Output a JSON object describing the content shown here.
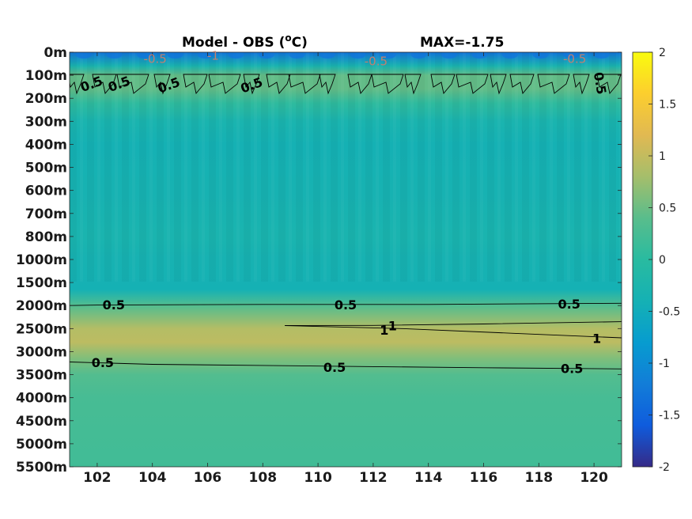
{
  "chart_data": {
    "type": "heatmap",
    "title_left": "Model - OBS (",
    "title_unit_sup": "o",
    "title_unit_end": "C)",
    "title_right": "MAX=-1.75",
    "x_ticks": [
      "102",
      "104",
      "106",
      "108",
      "110",
      "112",
      "114",
      "116",
      "118",
      "120"
    ],
    "x_tick_values": [
      102,
      104,
      106,
      108,
      110,
      112,
      114,
      116,
      118,
      120
    ],
    "xlim": [
      101,
      121
    ],
    "y_ticks": [
      "0m",
      "100m",
      "200m",
      "300m",
      "400m",
      "500m",
      "600m",
      "700m",
      "800m",
      "1000m",
      "1500m",
      "2000m",
      "2500m",
      "3000m",
      "3500m",
      "4000m",
      "4500m",
      "5000m",
      "5500m"
    ],
    "colorbar": {
      "min": -2,
      "max": 2,
      "ticks": [
        "2",
        "1.5",
        "1",
        "0.5",
        "0",
        "-0.5",
        "-1",
        "-1.5",
        "-2"
      ],
      "colormap": "parula"
    },
    "field_profile_by_depth_level": [
      {
        "level": 0,
        "value": -1.3
      },
      {
        "level": 0.6,
        "value": -0.3
      },
      {
        "level": 1,
        "value": 0.45
      },
      {
        "level": 1.6,
        "value": 0.45
      },
      {
        "level": 2.2,
        "value": 0.05
      },
      {
        "level": 3,
        "value": -0.3
      },
      {
        "level": 4,
        "value": -0.4
      },
      {
        "level": 6,
        "value": -0.35
      },
      {
        "level": 8,
        "value": -0.3
      },
      {
        "level": 9,
        "value": -0.35
      },
      {
        "level": 10.3,
        "value": -0.4
      },
      {
        "level": 11,
        "value": 0.35
      },
      {
        "level": 12,
        "value": 0.9
      },
      {
        "level": 12.6,
        "value": 0.95
      },
      {
        "level": 13.3,
        "value": 0.6
      },
      {
        "level": 14,
        "value": 0.35
      },
      {
        "level": 15,
        "value": 0.25
      },
      {
        "level": 18,
        "value": 0.2
      }
    ],
    "contour_labels": [
      {
        "text": "0.5",
        "x": 101.8,
        "level": 1.4,
        "angle": -20
      },
      {
        "text": "0.5",
        "x": 102.8,
        "level": 1.4,
        "angle": -20
      },
      {
        "text": "0.5",
        "x": 104.6,
        "level": 1.45,
        "angle": -20
      },
      {
        "text": "0.5",
        "x": 107.6,
        "level": 1.45,
        "angle": -20
      },
      {
        "text": "0.5",
        "x": 120.2,
        "level": 1.35,
        "angle": 80
      },
      {
        "text": "-0.5",
        "x": 104.1,
        "level": 0.3,
        "angle": 0
      },
      {
        "text": "-1",
        "x": 106.2,
        "level": 0.15,
        "angle": 0
      },
      {
        "text": "-0.5",
        "x": 112.1,
        "level": 0.4,
        "angle": 0
      },
      {
        "text": "-0.5",
        "x": 119.3,
        "level": 0.3,
        "angle": 0
      },
      {
        "text": "0.5",
        "x": 102.6,
        "level": 11.0,
        "angle": 0
      },
      {
        "text": "0.5",
        "x": 111.0,
        "level": 11.0,
        "angle": 0
      },
      {
        "text": "0.5",
        "x": 119.1,
        "level": 10.95,
        "angle": 0
      },
      {
        "text": "1",
        "x": 112.7,
        "level": 11.9,
        "angle": 0
      },
      {
        "text": "1",
        "x": 112.4,
        "level": 12.1,
        "angle": 0
      },
      {
        "text": "1",
        "x": 120.1,
        "level": 12.45,
        "angle": 0
      },
      {
        "text": "0.5",
        "x": 102.2,
        "level": 13.5,
        "angle": 0
      },
      {
        "text": "0.5",
        "x": 110.6,
        "level": 13.7,
        "angle": 0
      },
      {
        "text": "0.5",
        "x": 119.2,
        "level": 13.75,
        "angle": 0
      }
    ]
  }
}
